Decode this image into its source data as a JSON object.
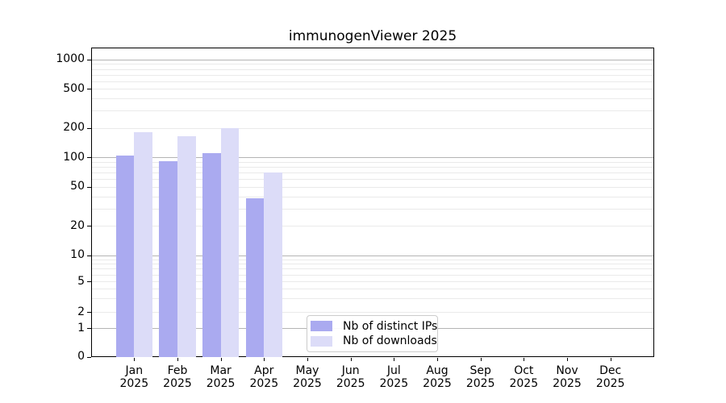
{
  "title": "immunogenViewer 2025",
  "legend": {
    "items": [
      {
        "label": "Nb of distinct IPs",
        "color": "#aaaaf0"
      },
      {
        "label": "Nb of downloads",
        "color": "#dcdcf8"
      }
    ]
  },
  "chart_data": {
    "type": "bar",
    "title": "immunogenViewer 2025",
    "categories": [
      "Jan",
      "Feb",
      "Mar",
      "Apr",
      "May",
      "Jun",
      "Jul",
      "Aug",
      "Sep",
      "Oct",
      "Nov",
      "Dec"
    ],
    "x_tick_year": "2025",
    "series": [
      {
        "name": "Nb of distinct IPs",
        "color": "#aaaaf0",
        "values": [
          105,
          92,
          110,
          38,
          null,
          null,
          null,
          null,
          null,
          null,
          null,
          null
        ]
      },
      {
        "name": "Nb of downloads",
        "color": "#dcdcf8",
        "values": [
          180,
          165,
          200,
          70,
          null,
          null,
          null,
          null,
          null,
          null,
          null,
          null
        ]
      }
    ],
    "yscale": "symlog",
    "yticks": [
      0,
      1,
      2,
      5,
      10,
      20,
      50,
      100,
      200,
      500,
      1000
    ],
    "ylim": [
      0,
      1300
    ],
    "xlabel": "",
    "ylabel": "",
    "grid": "horizontal major and minor log gridlines",
    "legend_position": "lower center-left inside plot",
    "colors": {
      "major_gridline": "#b4b4b4",
      "minor_gridline": "#eaeaea",
      "axis": "#000000",
      "background": "#ffffff"
    }
  }
}
